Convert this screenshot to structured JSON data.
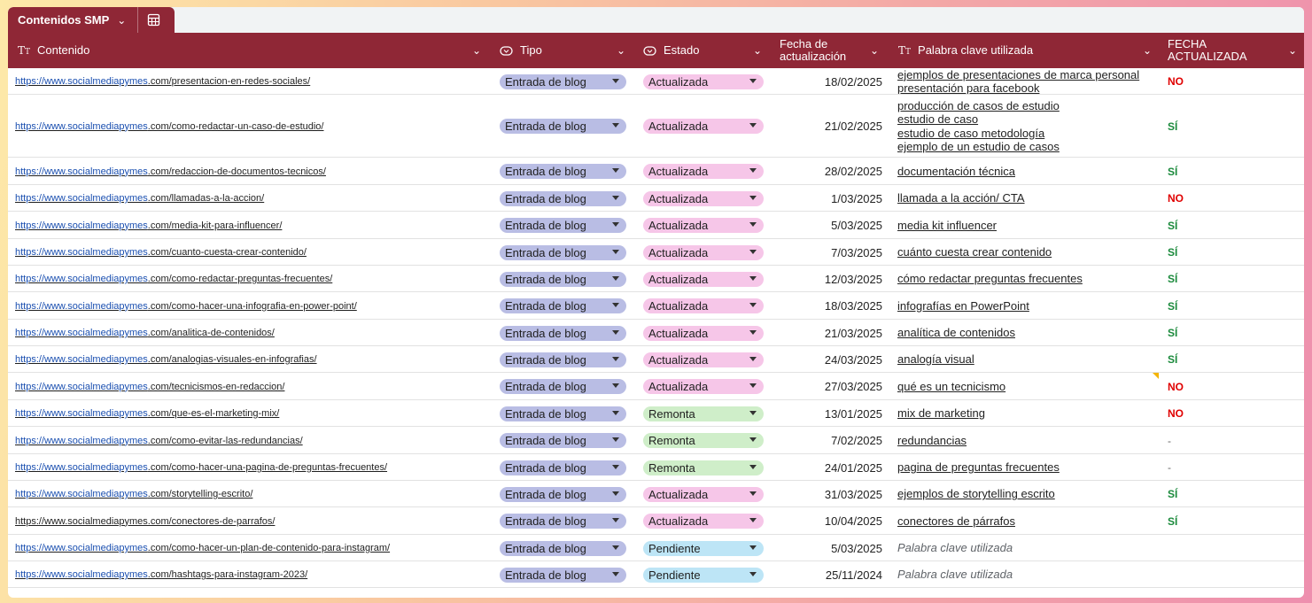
{
  "sheet": {
    "tab_name": "Contenidos SMP",
    "headers": {
      "contenido": "Contenido",
      "tipo": "Tipo",
      "estado": "Estado",
      "fecha_line1": "Fecha de",
      "fecha_line2": "actualización",
      "palabra": "Palabra clave utilizada",
      "flag_line1": "FECHA",
      "flag_line2": "ACTUALIZADA"
    },
    "url_domain": "https://www.socialmediapymes"
  },
  "colors": {
    "header_bg": "#8f2736",
    "tipo_chip": "#b9bde4",
    "estado_actualizada": "#f6c6e8",
    "estado_remonta": "#cfeec9",
    "estado_pendiente": "#bde5f6",
    "flag_no": "#e00000",
    "flag_si": "#1b8a3c"
  },
  "rows": [
    {
      "domain": "https://www.socialmediapymes",
      "path": ".com/presentacion-en-redes-sociales/",
      "tipo": "Entrada de blog",
      "estado": "Actualizada",
      "fecha": "18/02/2025",
      "keywords": [
        "ejemplos de presentaciones de marca personal",
        "presentación para facebook"
      ],
      "flag": "NO"
    },
    {
      "domain": "https://www.socialmediapymes",
      "path": ".com/como-redactar-un-caso-de-estudio/",
      "tipo": "Entrada de blog",
      "estado": "Actualizada",
      "fecha": "21/02/2025",
      "keywords": [
        "producción de casos de estudio",
        "estudio de caso",
        "estudio de caso metodología",
        "ejemplo de un estudio de casos"
      ],
      "flag": "SÍ"
    },
    {
      "domain": "https://www.socialmediapymes",
      "path": ".com/redaccion-de-documentos-tecnicos/",
      "tipo": "Entrada de blog",
      "estado": "Actualizada",
      "fecha": "28/02/2025",
      "keywords": [
        "documentación técnica"
      ],
      "flag": "SÍ"
    },
    {
      "domain": "https://www.socialmediapymes",
      "path": ".com/llamadas-a-la-accion/",
      "tipo": "Entrada de blog",
      "estado": "Actualizada",
      "fecha": "1/03/2025",
      "keywords": [
        "llamada a la acción/ CTA"
      ],
      "flag": "NO"
    },
    {
      "domain": "https://www.socialmediapymes",
      "path": ".com/media-kit-para-influencer/",
      "tipo": "Entrada de blog",
      "estado": "Actualizada",
      "fecha": "5/03/2025",
      "keywords": [
        "media kit influencer"
      ],
      "flag": "SÍ"
    },
    {
      "domain": "https://www.socialmediapymes",
      "path": ".com/cuanto-cuesta-crear-contenido/",
      "tipo": "Entrada de blog",
      "estado": "Actualizada",
      "fecha": "7/03/2025",
      "keywords": [
        "cuánto cuesta crear contenido"
      ],
      "flag": "SÍ"
    },
    {
      "domain": "https://www.socialmediapymes",
      "path": ".com/como-redactar-preguntas-frecuentes/",
      "tipo": "Entrada de blog",
      "estado": "Actualizada",
      "fecha": "12/03/2025",
      "keywords": [
        "cómo redactar preguntas frecuentes"
      ],
      "flag": "SÍ"
    },
    {
      "domain": "https://www.socialmediapymes",
      "path": ".com/como-hacer-una-infografia-en-power-point/",
      "tipo": "Entrada de blog",
      "estado": "Actualizada",
      "fecha": "18/03/2025",
      "keywords": [
        "infografías en PowerPoint"
      ],
      "flag": "SÍ"
    },
    {
      "domain": "https://www.socialmediapymes",
      "path": ".com/analitica-de-contenidos/",
      "tipo": "Entrada de blog",
      "estado": "Actualizada",
      "fecha": "21/03/2025",
      "keywords": [
        "analítica de contenidos"
      ],
      "flag": "SÍ"
    },
    {
      "domain": "https://www.socialmediapymes",
      "path": ".com/analogias-visuales-en-infografias/",
      "tipo": "Entrada de blog",
      "estado": "Actualizada",
      "fecha": "24/03/2025",
      "keywords": [
        "analogía visual"
      ],
      "flag": "SÍ"
    },
    {
      "domain": "https://www.socialmediapymes",
      "path": ".com/tecnicismos-en-redaccion/",
      "tipo": "Entrada de blog",
      "estado": "Actualizada",
      "fecha": "27/03/2025",
      "keywords": [
        "qué es un tecnicismo"
      ],
      "flag": "NO",
      "note": true
    },
    {
      "domain": "https://www.socialmediapymes",
      "path": ".com/que-es-el-marketing-mix/",
      "tipo": "Entrada de blog",
      "estado": "Remonta",
      "fecha": "13/01/2025",
      "keywords": [
        "mix de marketing"
      ],
      "flag": "NO"
    },
    {
      "domain": "https://www.socialmediapymes",
      "path": ".com/como-evitar-las-redundancias/",
      "tipo": "Entrada de blog",
      "estado": "Remonta",
      "fecha": "7/02/2025",
      "keywords": [
        "redundancias"
      ],
      "flag": "-"
    },
    {
      "domain": "https://www.socialmediapymes",
      "path": ".com/como-hacer-una-pagina-de-preguntas-frecuentes/",
      "tipo": "Entrada de blog",
      "estado": "Remonta",
      "fecha": "24/01/2025",
      "keywords": [
        "pagina de preguntas frecuentes"
      ],
      "flag": "-"
    },
    {
      "domain": "https://www.socialmediapymes",
      "path": ".com/storytelling-escrito/",
      "tipo": "Entrada de blog",
      "estado": "Actualizada",
      "fecha": "31/03/2025",
      "keywords": [
        "ejemplos de storytelling escrito"
      ],
      "flag": "SÍ"
    },
    {
      "domain": "",
      "path": "https://www.socialmediapymes.com/conectores-de-parrafos/",
      "tipo": "Entrada de blog",
      "estado": "Actualizada",
      "fecha": "10/04/2025",
      "keywords": [
        "conectores de párrafos"
      ],
      "flag": "SÍ"
    },
    {
      "domain": "https://www.socialmediapymes",
      "path": ".com/como-hacer-un-plan-de-contenido-para-instagram/",
      "tipo": "Entrada de blog",
      "estado": "Pendiente",
      "fecha": "5/03/2025",
      "keywords": [
        "Palabra clave utilizada"
      ],
      "placeholder": true,
      "flag": ""
    },
    {
      "domain": "https://www.socialmediapymes",
      "path": ".com/hashtags-para-instagram-2023/",
      "tipo": "Entrada de blog",
      "estado": "Pendiente",
      "fecha": "25/11/2024",
      "keywords": [
        "Palabra clave utilizada"
      ],
      "placeholder": true,
      "flag": ""
    }
  ]
}
